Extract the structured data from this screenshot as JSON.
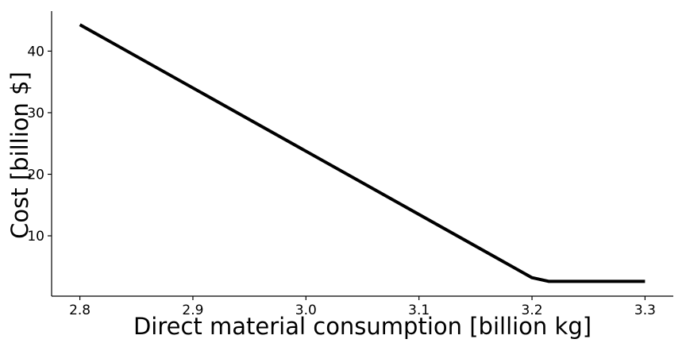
{
  "chart_data": {
    "type": "line",
    "title": "",
    "xlabel": "Direct material consumption [billion kg]",
    "ylabel": "Cost [billion $]",
    "xlim": [
      2.775,
      3.325
    ],
    "ylim": [
      0.2,
      46.5
    ],
    "x_ticks": [
      2.8,
      2.9,
      3.0,
      3.1,
      3.2,
      3.3
    ],
    "x_tick_labels": [
      "2.8",
      "2.9",
      "3.0",
      "3.1",
      "3.2",
      "3.3"
    ],
    "y_ticks": [
      10,
      20,
      30,
      40
    ],
    "y_tick_labels": [
      "10",
      "20",
      "30",
      "40"
    ],
    "grid": false,
    "legend": "none",
    "series": [
      {
        "color": "#000000",
        "x": [
          2.8,
          3.2,
          3.215,
          3.3
        ],
        "y": [
          44.3,
          3.2,
          2.6,
          2.6
        ]
      }
    ]
  }
}
